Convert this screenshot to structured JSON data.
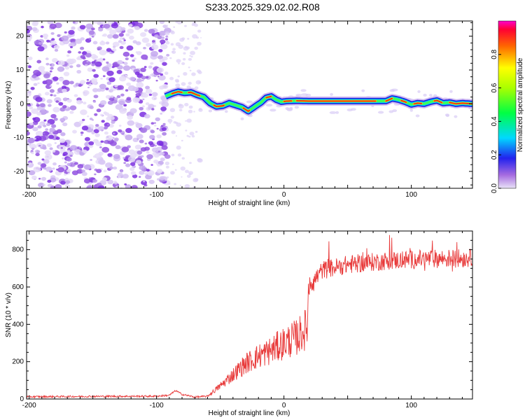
{
  "title": "S233.2025.329.02.02.R08",
  "chart_data": [
    {
      "type": "heatmap",
      "xlabel": "Height of straight line (km)",
      "ylabel": "Frequency (Hz)",
      "xlim": [
        -202,
        148
      ],
      "ylim": [
        -25,
        24.5
      ],
      "xticks": [
        -200,
        -100,
        0,
        100
      ],
      "yticks": [
        -20,
        -10,
        0,
        10,
        20
      ],
      "noise_region_x": [
        -202,
        -93
      ],
      "ridge": {
        "x": [
          -93,
          -88,
          -83,
          -78,
          -73,
          -68,
          -63,
          -58,
          -53,
          -48,
          -43,
          -38,
          -33,
          -28,
          -25,
          -22,
          -18,
          -14,
          -10,
          -6,
          -2,
          2,
          10,
          20,
          40,
          60,
          70,
          80,
          85,
          90,
          95,
          100,
          105,
          110,
          115,
          120,
          125,
          130,
          135,
          140,
          148
        ],
        "freq": [
          2.2,
          3.0,
          3.6,
          3.2,
          3.4,
          2.6,
          2.0,
          0.2,
          -0.8,
          -0.6,
          0.2,
          -0.4,
          -1.0,
          -2.2,
          -1.4,
          -0.6,
          0.4,
          1.8,
          2.2,
          1.2,
          0.6,
          0.8,
          0.9,
          0.8,
          0.8,
          0.8,
          0.8,
          0.8,
          1.6,
          1.2,
          0.6,
          -0.2,
          0.2,
          0.0,
          0.6,
          1.0,
          0.2,
          0.4,
          0.0,
          0.2,
          0.0
        ]
      },
      "colorbar": {
        "label": "Normalized spectral amplitude",
        "range": [
          0.0,
          1.0
        ],
        "ticks": [
          "0.0",
          "0.2",
          "0.4",
          "0.6",
          "0.8"
        ]
      }
    },
    {
      "type": "line",
      "xlabel": "Height of straight line (km)",
      "ylabel": "SNR (10 * v/v)",
      "xlim": [
        -202,
        148
      ],
      "ylim": [
        0,
        900
      ],
      "xticks": [
        -200,
        -100,
        0,
        100
      ],
      "yticks": [
        0,
        200,
        400,
        600,
        800
      ],
      "series": [
        {
          "name": "SNR",
          "color": "#e83a3a",
          "x": [
            -202,
            -150,
            -100,
            -90,
            -85,
            -80,
            -70,
            -60,
            -50,
            -40,
            -30,
            -20,
            -10,
            0,
            10,
            18,
            20,
            22,
            30,
            50,
            80,
            110,
            148
          ],
          "y": [
            12,
            14,
            15,
            20,
            45,
            25,
            10,
            15,
            70,
            130,
            190,
            230,
            260,
            300,
            330,
            380,
            650,
            620,
            690,
            720,
            740,
            750,
            755
          ]
        }
      ]
    }
  ]
}
